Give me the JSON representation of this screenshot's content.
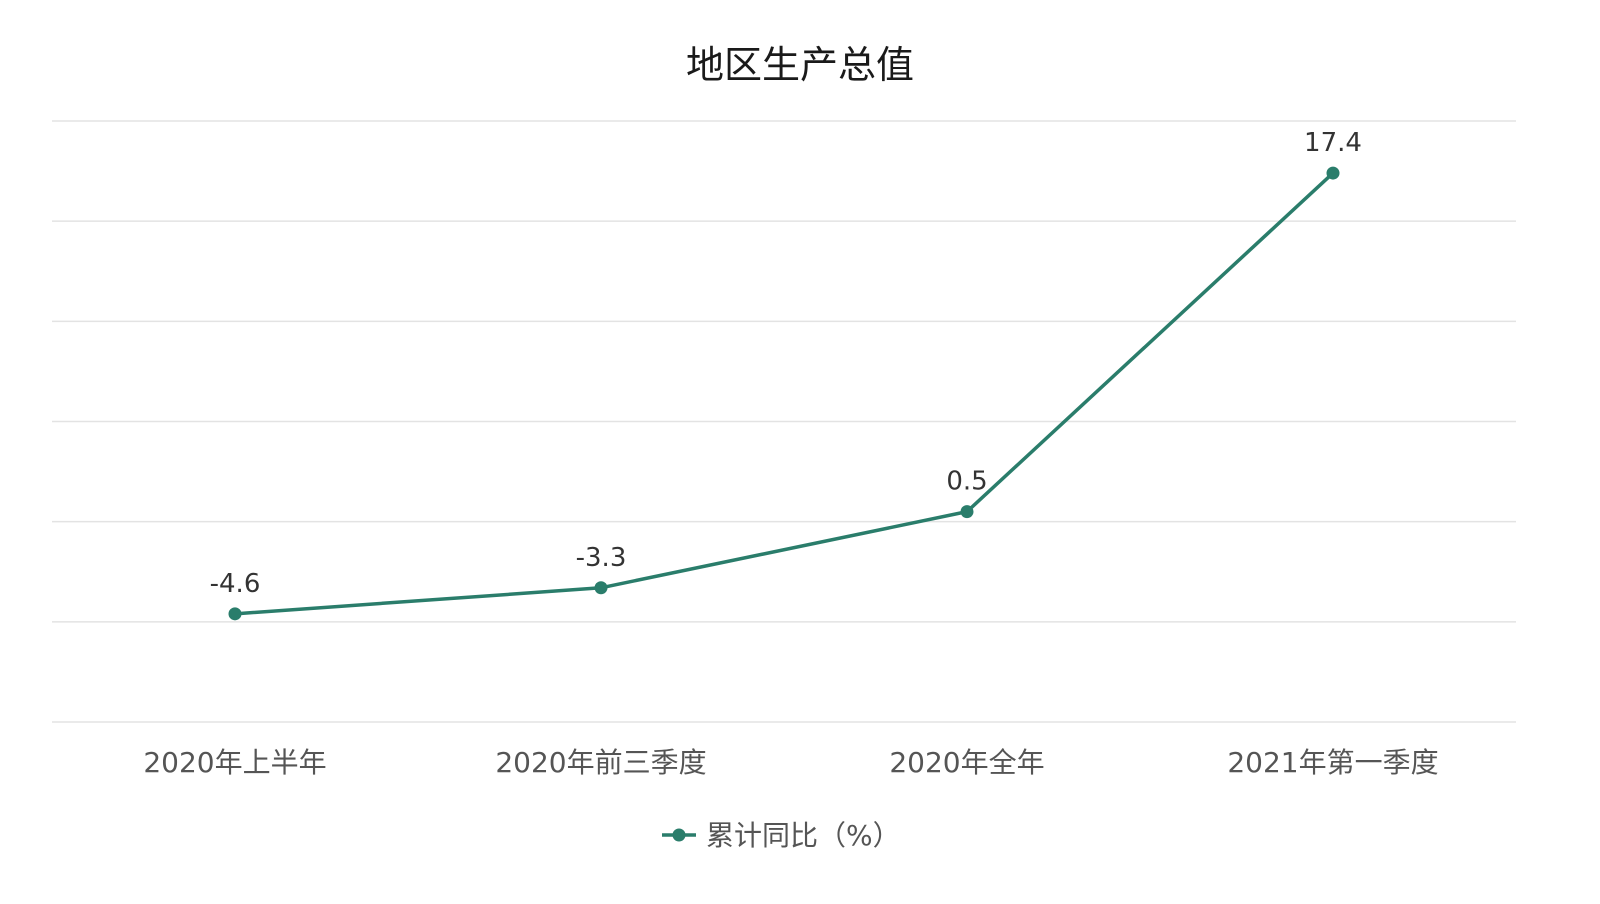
{
  "chart_data": {
    "type": "line",
    "title": "地区生产总值",
    "categories": [
      "2020年上半年",
      "2020年前三季度",
      "2020年全年",
      "2021年第一季度"
    ],
    "series": [
      {
        "name": "累计同比（%）",
        "values": [
          -4.6,
          -3.3,
          0.5,
          17.4
        ],
        "color": "#2a7d6b"
      }
    ],
    "xlabel": "",
    "ylabel": "",
    "ylim": [
      -10,
      20
    ],
    "grid": true,
    "legend": "bottom-center"
  }
}
